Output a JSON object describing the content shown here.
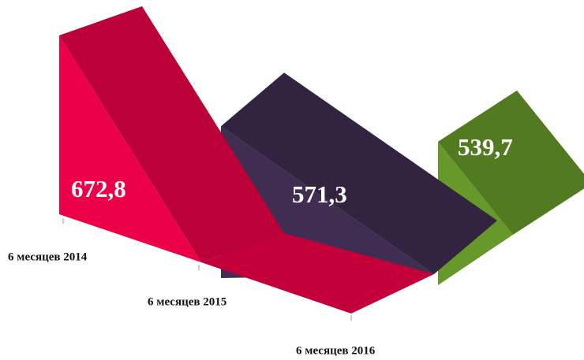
{
  "chart_data": {
    "type": "area3d",
    "categories": [
      "6 месяцев 2014",
      "6 месяцев 2015",
      "6 месяцев 2016"
    ],
    "values": [
      672.8,
      571.3,
      539.7
    ],
    "value_labels": [
      "672,8",
      "571,3",
      "539,7"
    ],
    "colors": [
      "#ec0047",
      "#3f2e52",
      "#67992a"
    ]
  }
}
